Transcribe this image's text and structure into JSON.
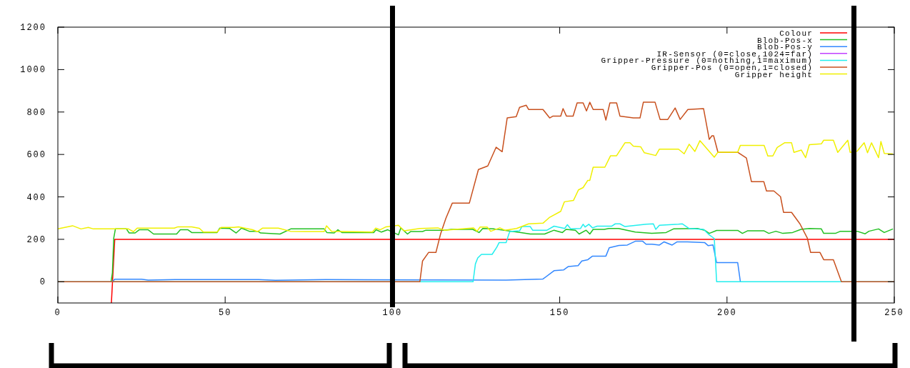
{
  "chart_data": {
    "type": "line",
    "xlim": [
      0,
      250
    ],
    "ylim": [
      -100,
      1200
    ],
    "xticks": [
      0,
      50,
      100,
      150,
      200,
      250
    ],
    "yticks": [
      0,
      200,
      400,
      600,
      800,
      1000,
      1200
    ],
    "grid": false,
    "legend": "top right",
    "marker": "none",
    "line_style": "solid",
    "series": [
      {
        "name": "Colour",
        "color": "#ff0000",
        "x": [
          16,
          16.5,
          17,
          250
        ],
        "values": [
          -100,
          50,
          200,
          200
        ]
      },
      {
        "name": "Blob-Pos-x",
        "color": "#22c022",
        "x": [
          15.9,
          16.3,
          16.7,
          17.2,
          20.5,
          21.3,
          23.1,
          24.3,
          27,
          28.6,
          35.5,
          36.6,
          38.9,
          40,
          47.6,
          48.4,
          51.4,
          53.3,
          54.9,
          57.2,
          59.8,
          60.6,
          66.4,
          69.6,
          79.6,
          80.4,
          82.6,
          83.7,
          84.9,
          94.4,
          95.1,
          96.7,
          98.6,
          101.8,
          102.5,
          104.5,
          105.5,
          109,
          110,
          115.5,
          117.6,
          124,
          125.9,
          127,
          130.4,
          138.4,
          141.2,
          145.5,
          148.3,
          150.8,
          151.9,
          154.7,
          155.8,
          157.9,
          159,
          160,
          163.3,
          164.7,
          167.6,
          172.6,
          177.5,
          181.8,
          184,
          191.2,
          193.3,
          194.7,
          196.9,
          203.2,
          204.6,
          206.1,
          211.1,
          212.5,
          214.6,
          216.7,
          219.6,
          222.1,
          224.6,
          228.2,
          228.9,
          232.4,
          233.9,
          238.9,
          241.3,
          242.4,
          245.3,
          247,
          249.6
        ],
        "values": [
          0,
          42,
          205,
          249,
          249,
          230,
          230,
          245,
          245,
          225,
          225,
          245,
          245,
          232,
          232,
          253,
          251,
          230,
          253,
          238,
          238,
          230,
          225,
          249,
          249,
          232,
          230,
          245,
          232,
          232,
          245,
          234,
          245,
          221,
          254,
          225,
          237,
          237,
          243,
          243,
          247,
          247,
          232,
          251,
          249,
          232,
          225,
          225,
          243,
          232,
          247,
          243,
          225,
          243,
          225,
          247,
          247,
          251,
          251,
          234,
          228,
          232,
          249,
          251,
          243,
          228,
          242,
          242,
          228,
          240,
          240,
          228,
          238,
          228,
          232,
          247,
          251,
          249,
          228,
          228,
          238,
          238,
          226,
          238,
          249,
          232,
          249
        ]
      },
      {
        "name": "Blob-Pos-y",
        "color": "#3388ff",
        "x": [
          16.3,
          17,
          25,
          27,
          35,
          60,
          65,
          80,
          134,
          145,
          148.3,
          151.2,
          152.6,
          155.5,
          156.6,
          158.4,
          159.8,
          163.8,
          164.8,
          167.7,
          170.2,
          172.6,
          174.8,
          175.8,
          177.6,
          179.8,
          181.2,
          183.6,
          185.1,
          188.2,
          193.3,
          194.4,
          195.8,
          196.9,
          203.2,
          204
        ],
        "values": [
          0,
          12,
          12,
          8,
          10,
          10,
          7,
          10,
          8,
          13,
          52,
          56,
          72,
          76,
          98,
          104,
          121,
          121,
          160,
          171,
          173,
          191,
          191,
          177,
          177,
          173,
          188,
          173,
          188,
          188,
          185,
          170,
          174,
          90,
          90,
          0
        ]
      },
      {
        "name": "IR-Sensor (0=close,1024=far)",
        "color": "#c040ff"
      },
      {
        "name": "Gripper-Pressure (0=nothing,1=maximum)",
        "color": "#22eeee",
        "x": [
          0,
          124.1,
          124.8,
          125.5,
          126.6,
          129.8,
          131.2,
          131.9,
          134,
          134.8,
          135.1,
          138,
          138.7,
          141.2,
          141.9,
          146.2,
          148.3,
          151.5,
          152.3,
          153.3,
          156.2,
          157,
          157.6,
          158.7,
          159.8,
          161.2,
          165.5,
          166.6,
          168,
          169.5,
          175.9,
          178,
          178.7,
          179.8,
          185.5,
          186.6,
          188.7,
          193,
          194.7,
          196.2,
          196.9,
          249.6
        ],
        "values": [
          0,
          0,
          84,
          112,
          129,
          129,
          163,
          185,
          185,
          225,
          237,
          240,
          260,
          260,
          243,
          243,
          262,
          251,
          269,
          249,
          251,
          271,
          258,
          271,
          254,
          262,
          262,
          273,
          273,
          260,
          271,
          273,
          247,
          266,
          271,
          273,
          251,
          247,
          221,
          204,
          0,
          0
        ]
      },
      {
        "name": "Gripper-Pos (0=open,1=closed)",
        "color": "#c8501e",
        "x": [
          0,
          108.2,
          109,
          110.8,
          113,
          114.4,
          116,
          117.9,
          123,
          125.7,
          128.5,
          131,
          132.8,
          134.3,
          137,
          138,
          140,
          140.7,
          145,
          147,
          148,
          150.3,
          151,
          152,
          154,
          155.2,
          157,
          158,
          159,
          160,
          163,
          163.8,
          165,
          167,
          168,
          172,
          174,
          175,
          178.5,
          180,
          182.3,
          184.5,
          186,
          188.3,
          193,
          194.7,
          195.5,
          196,
          197.3,
          203.2,
          205.8,
          207.3,
          211,
          211.8,
          214,
          216,
          216.9,
          219.3,
          221.8,
          224,
          225,
          227.8,
          228.9,
          231.8,
          234.2,
          250
        ],
        "values": [
          0,
          0,
          98,
          138,
          138,
          226,
          300,
          371,
          371,
          529,
          546,
          634,
          613,
          772,
          778,
          822,
          832,
          812,
          812,
          772,
          781,
          781,
          816,
          781,
          781,
          843,
          843,
          805,
          846,
          812,
          812,
          762,
          843,
          843,
          781,
          772,
          772,
          846,
          846,
          765,
          765,
          819,
          765,
          812,
          816,
          671,
          688,
          688,
          610,
          610,
          583,
          472,
          472,
          428,
          428,
          401,
          327,
          327,
          273,
          206,
          138,
          138,
          104,
          104,
          0,
          0
        ]
      },
      {
        "name": "Gripper height",
        "color": "#f0f000",
        "x": [
          0,
          4.4,
          6.9,
          9.1,
          10.6,
          21.1,
          22.6,
          23.7,
          34.8,
          35.9,
          40,
          42.3,
          43.5,
          47.6,
          48.8,
          52.6,
          54,
          58.2,
          59.7,
          61.2,
          65.9,
          69.5,
          73.8,
          79.6,
          80.3,
          81.8,
          94,
          95,
          96.3,
          98.1,
          101.8,
          103.5,
          108.2,
          113.6,
          115.5,
          124.2,
          125.3,
          126.2,
          128.3,
          129.4,
          132.1,
          133.6,
          137.1,
          140.7,
          145,
          147,
          150.3,
          151.4,
          154.1,
          155.6,
          157,
          158.4,
          159,
          160,
          163.5,
          165.2,
          167,
          169.5,
          171,
          172,
          174.2,
          175.3,
          178.7,
          179.8,
          185.5,
          187.2,
          188.7,
          190.4,
          191.9,
          196.2,
          197.3,
          203.2,
          204,
          211.1,
          212.2,
          213.7,
          215,
          217.2,
          219.3,
          220,
          222.2,
          223.5,
          224.6,
          228.2,
          228.9,
          231.8,
          233.1,
          236.1,
          236.8,
          238.9,
          241,
          242,
          243.2,
          245.3,
          246,
          247,
          249.6
        ],
        "values": [
          249,
          264,
          249,
          256,
          249,
          249,
          236,
          253,
          253,
          259,
          259,
          252,
          234,
          234,
          256,
          256,
          259,
          245,
          236,
          253,
          253,
          238,
          237,
          237,
          264,
          238,
          234,
          253,
          245,
          259,
          266,
          240,
          251,
          254,
          243,
          254,
          238,
          258,
          258,
          238,
          254,
          243,
          251,
          273,
          276,
          304,
          332,
          377,
          383,
          433,
          444,
          478,
          478,
          540,
          540,
          594,
          594,
          655,
          655,
          639,
          636,
          608,
          595,
          625,
          625,
          603,
          648,
          614,
          665,
          587,
          611,
          611,
          643,
          643,
          593,
          593,
          633,
          655,
          655,
          610,
          621,
          585,
          646,
          650,
          667,
          667,
          610,
          667,
          610,
          616,
          655,
          608,
          655,
          585,
          661,
          605,
          602
        ]
      }
    ]
  }
}
